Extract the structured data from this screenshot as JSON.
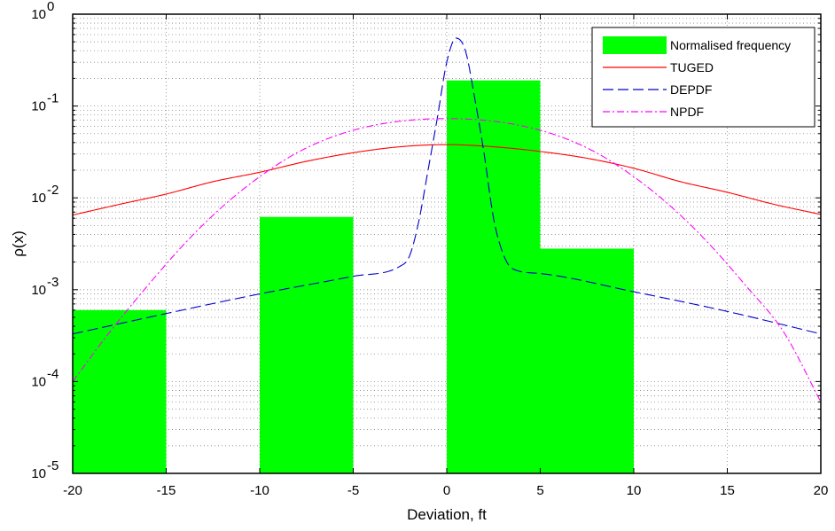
{
  "chart_data": {
    "type": "bar",
    "title": "",
    "xlabel": "Deviation, ft",
    "ylabel": "ρ(x)",
    "x_scale": "linear",
    "y_scale": "log",
    "xlim": [
      -20,
      20
    ],
    "ylim": [
      1e-05,
      1
    ],
    "grid": true,
    "legend_position": "top-right",
    "x_ticks": [
      -20,
      -15,
      -10,
      -5,
      0,
      5,
      10,
      15,
      20
    ],
    "y_ticks": [
      {
        "value": 1e-05,
        "base": "10",
        "exp": "-5"
      },
      {
        "value": 0.0001,
        "base": "10",
        "exp": "-4"
      },
      {
        "value": 0.001,
        "base": "10",
        "exp": "-3"
      },
      {
        "value": 0.01,
        "base": "10",
        "exp": "-2"
      },
      {
        "value": 0.1,
        "base": "10",
        "exp": "-1"
      },
      {
        "value": 1,
        "base": "10",
        "exp": "0"
      }
    ],
    "bars": [
      {
        "x0": -20,
        "x1": -15,
        "value": 0.0006
      },
      {
        "x0": -15,
        "x1": -10,
        "value": 0
      },
      {
        "x0": -10,
        "x1": -5,
        "value": 0.0062
      },
      {
        "x0": -5,
        "x1": 0,
        "value": 0
      },
      {
        "x0": 0,
        "x1": 5,
        "value": 0.19
      },
      {
        "x0": 5,
        "x1": 10,
        "value": 0.0028
      }
    ],
    "bar_color": "#00ff00",
    "series": [
      {
        "name": "TUGED",
        "color": "#ff0000",
        "dash": "",
        "x": [
          -20,
          -17.5,
          -15,
          -12.5,
          -10,
          -7.5,
          -5,
          -2.5,
          0,
          2.5,
          5,
          7.5,
          10,
          12.5,
          15,
          17.5,
          20
        ],
        "y": [
          0.0065,
          0.0085,
          0.011,
          0.015,
          0.019,
          0.025,
          0.031,
          0.036,
          0.038,
          0.036,
          0.032,
          0.027,
          0.021,
          0.015,
          0.0115,
          0.0085,
          0.0066
        ]
      },
      {
        "name": "DEPDF",
        "color": "#0000cc",
        "dash": "12,5",
        "x": [
          -20,
          -15,
          -10,
          -5,
          -2.5,
          -2,
          -1.5,
          -1,
          -0.5,
          0,
          0.5,
          1,
          1.5,
          2,
          2.5,
          3,
          3.5,
          5,
          10,
          15,
          20
        ],
        "y": [
          0.00033,
          0.00055,
          0.0009,
          0.0014,
          0.0018,
          0.0023,
          0.0055,
          0.02,
          0.075,
          0.3,
          0.55,
          0.4,
          0.12,
          0.03,
          0.006,
          0.0025,
          0.0017,
          0.0015,
          0.00095,
          0.00058,
          0.00033
        ]
      },
      {
        "name": "NPDF",
        "color": "#ff00ff",
        "dash": "8,3,2,3",
        "x": [
          -20,
          -18,
          -16,
          -14,
          -12,
          -10,
          -8,
          -6,
          -4,
          -2,
          0,
          2,
          4,
          6,
          8,
          10,
          12,
          14,
          16,
          18,
          20
        ],
        "y": [
          0.0001,
          0.00035,
          0.0011,
          0.0032,
          0.008,
          0.017,
          0.031,
          0.047,
          0.061,
          0.07,
          0.073,
          0.07,
          0.061,
          0.047,
          0.031,
          0.017,
          0.008,
          0.0032,
          0.0011,
          0.00035,
          6e-05
        ]
      }
    ],
    "legend": [
      {
        "label": "Normalised frequency",
        "kind": "patch",
        "color": "#00ff00"
      },
      {
        "label": "TUGED",
        "kind": "line",
        "color": "#ff0000",
        "dash": ""
      },
      {
        "label": "DEPDF",
        "kind": "line",
        "color": "#0000cc",
        "dash": "12,5"
      },
      {
        "label": "NPDF",
        "kind": "line",
        "color": "#ff00ff",
        "dash": "8,3,2,3"
      }
    ]
  }
}
